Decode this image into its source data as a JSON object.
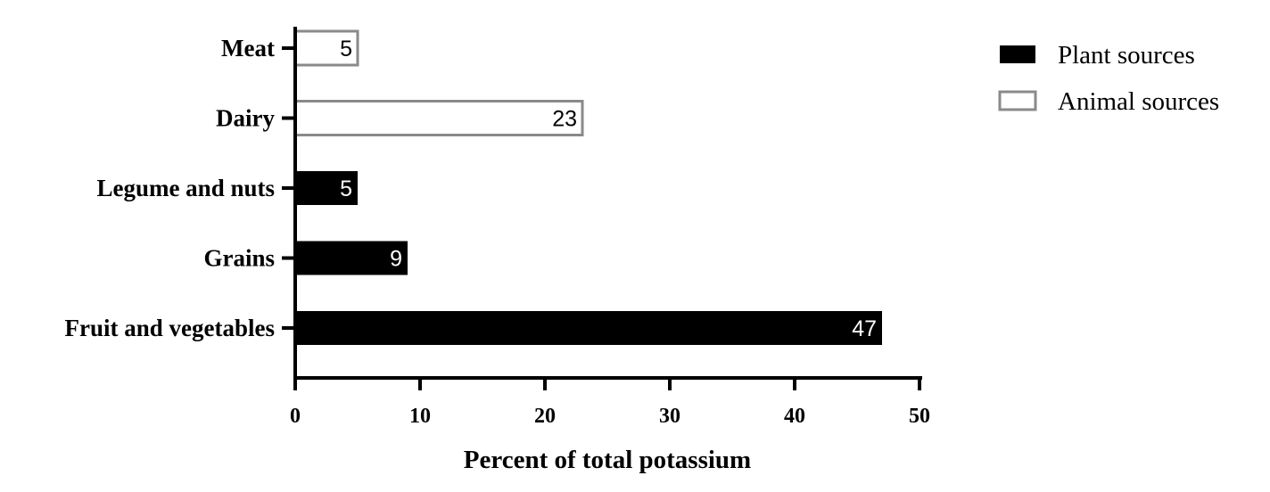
{
  "chart_data": {
    "type": "bar",
    "orientation": "horizontal",
    "categories": [
      "Meat",
      "Dairy",
      "Legume and nuts",
      "Grains",
      "Fruit and vegetables"
    ],
    "values": [
      5,
      23,
      5,
      9,
      47
    ],
    "series_of_category": [
      "Animal sources",
      "Animal sources",
      "Plant sources",
      "Plant sources",
      "Plant sources"
    ],
    "series": [
      {
        "name": "Plant sources",
        "fill": "#000000",
        "stroke": "#000000",
        "label_color": "#ffffff"
      },
      {
        "name": "Animal sources",
        "fill": "#ffffff",
        "stroke": "#8a8a8a",
        "label_color": "#000000"
      }
    ],
    "title": "",
    "xlabel": "Percent of total potassium",
    "ylabel": "",
    "xlim": [
      0,
      50
    ],
    "xticks": [
      0,
      10,
      20,
      30,
      40,
      50
    ],
    "legend_position": "top-right",
    "grid": false
  }
}
